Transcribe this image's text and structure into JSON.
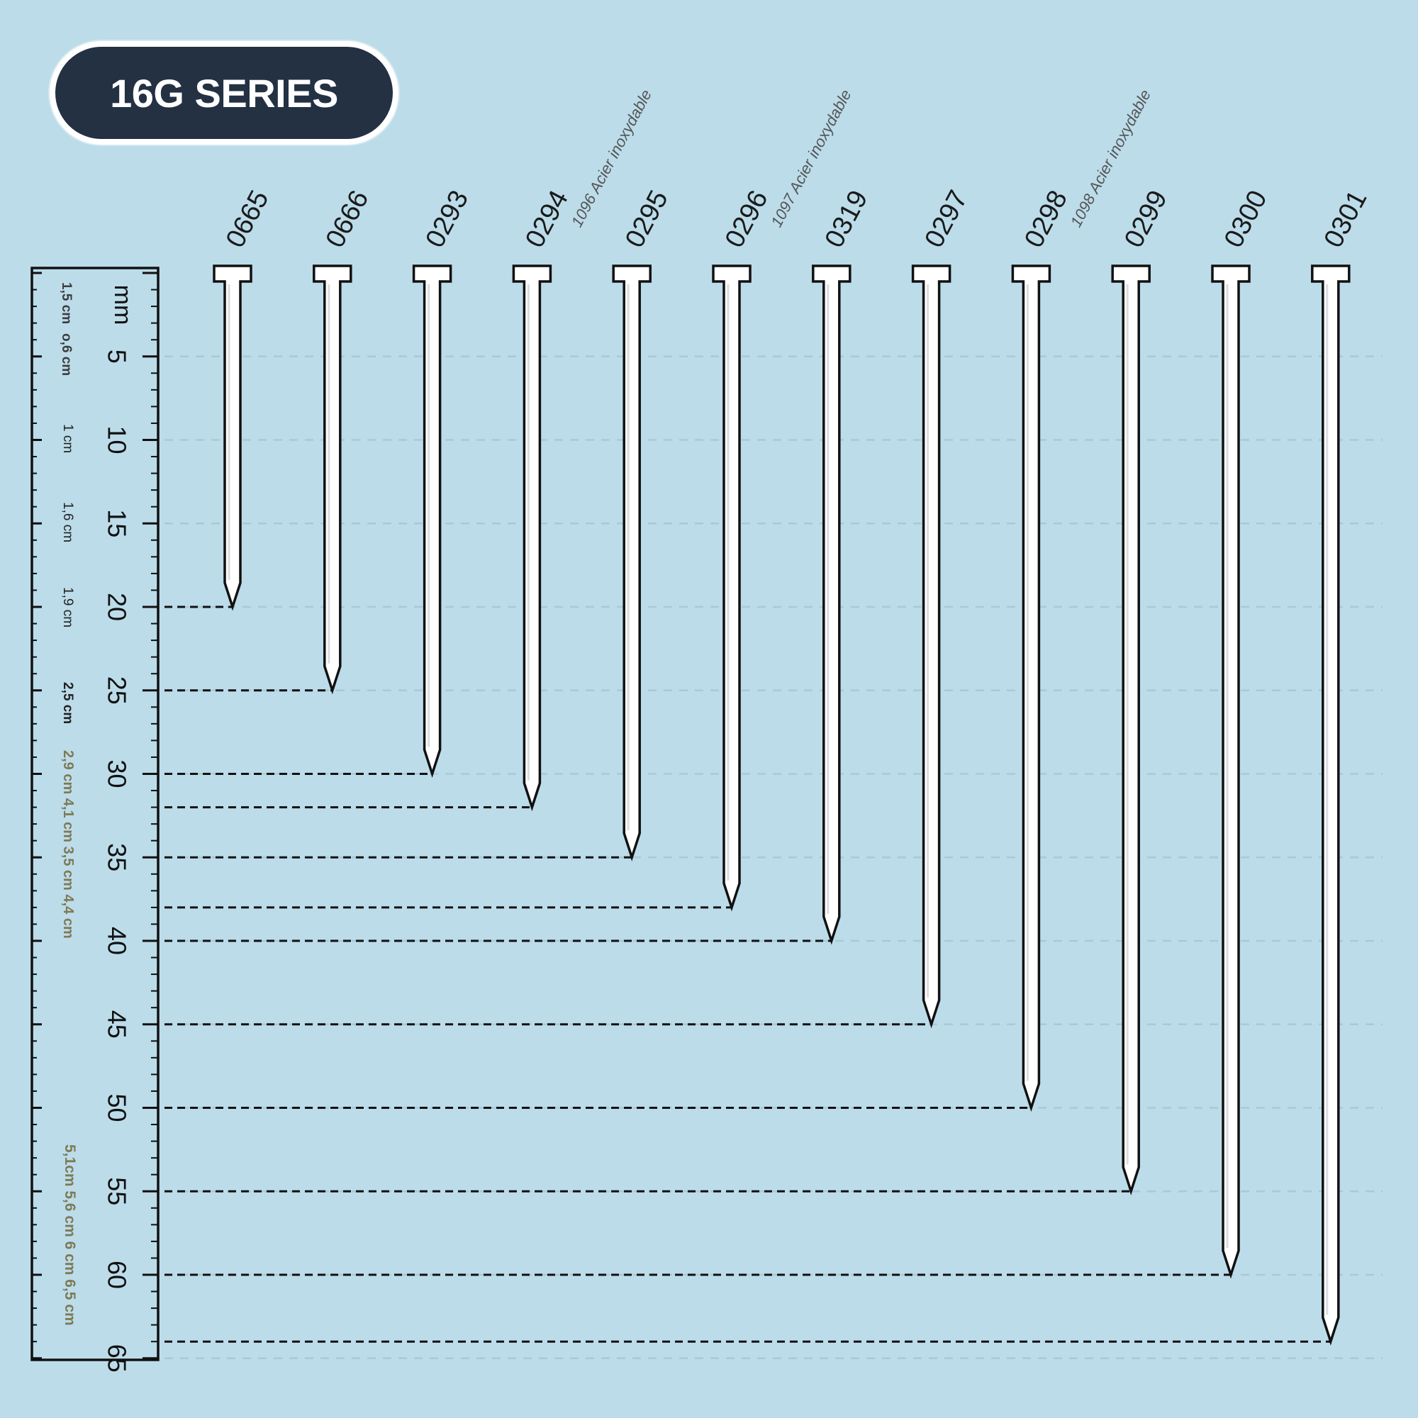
{
  "title": "16G SERIES",
  "scale": {
    "unit": "mm",
    "max_mm": 65,
    "ticks": [
      "5",
      "10",
      "15",
      "20",
      "25",
      "30",
      "35",
      "40",
      "45",
      "50",
      "55",
      "60",
      "65"
    ]
  },
  "side_labels": {
    "group1": [
      "1,5 cm",
      "o,6 cm"
    ],
    "lbl_1cm": "1 cm",
    "lbl_16": "1,6 cm",
    "lbl_19": "1,9 cm",
    "lbl_25": "2,5 cm",
    "group_mid": "2,9 cm 4,1 cm 3,5 cm 4,4 cm",
    "group_low": "5,1cm 5,6 cm 6 cm 6,5 cm"
  },
  "nails": [
    {
      "code": "0665",
      "length_mm": 20
    },
    {
      "code": "0666",
      "length_mm": 25
    },
    {
      "code": "0293",
      "length_mm": 30
    },
    {
      "code": "0294",
      "length_mm": 32,
      "note": "1096 Acier inoxydable"
    },
    {
      "code": "0295",
      "length_mm": 35
    },
    {
      "code": "0296",
      "length_mm": 38,
      "note": "1097 Acier inoxydable"
    },
    {
      "code": "0319",
      "length_mm": 40
    },
    {
      "code": "0297",
      "length_mm": 45
    },
    {
      "code": "0298",
      "length_mm": 50,
      "note": "1098 Acier inoxydable"
    },
    {
      "code": "0299",
      "length_mm": 55
    },
    {
      "code": "0300",
      "length_mm": 60
    },
    {
      "code": "0301",
      "length_mm": 64
    }
  ],
  "colors": {
    "background": "#bcdcea",
    "badge": "#233143",
    "ink": "#111111",
    "label_brown": "#7d7a55",
    "gridline": "#a9c9d4"
  }
}
